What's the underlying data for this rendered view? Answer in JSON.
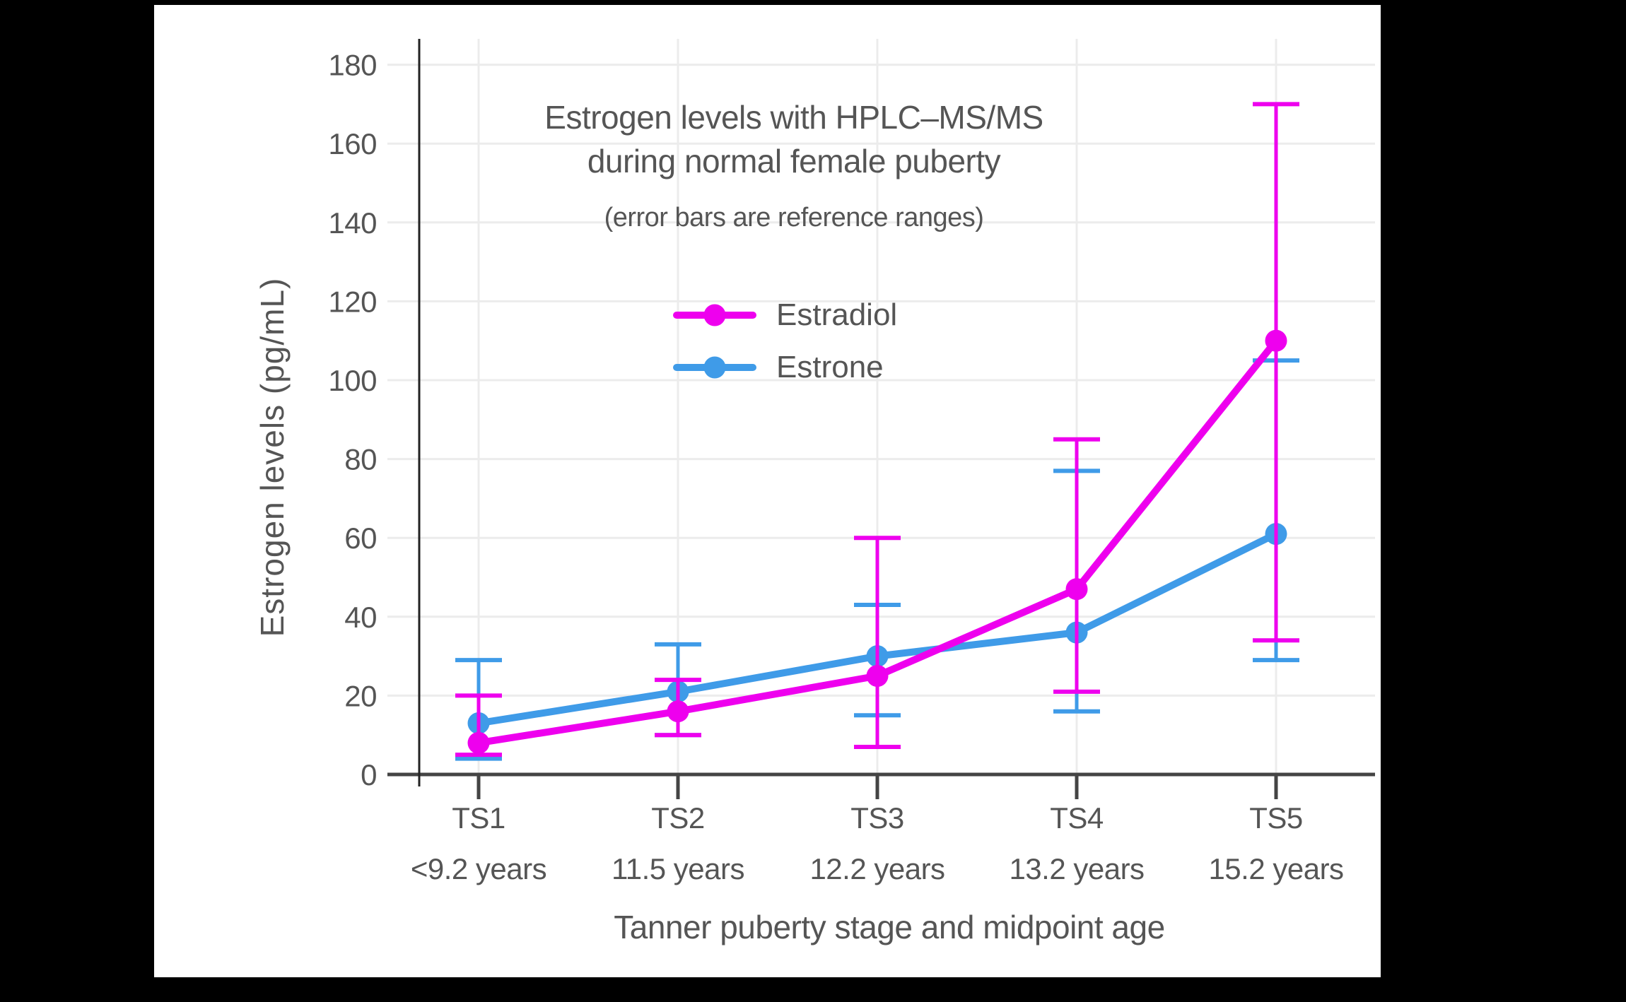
{
  "page": {
    "background_color": "#000000",
    "canvas_color": "#ffffff",
    "text_color": "#555555",
    "grid_color": "#ececec",
    "axis_color": "#444444"
  },
  "chart_data": {
    "type": "line",
    "title": [
      "Estrogen levels with HPLC–MS/MS",
      "during normal female puberty"
    ],
    "subtitle": "(error bars are reference ranges)",
    "ylabel": "Estrogen levels (pg/mL)",
    "xlabel": "Tanner puberty stage and midpoint age",
    "categories": [
      "TS1",
      "TS2",
      "TS3",
      "TS4",
      "TS5"
    ],
    "category_sublabels": [
      "<9.2 years",
      "11.5 years",
      "12.2 years",
      "13.2 years",
      "15.2 years"
    ],
    "y_ticks": [
      0,
      20,
      40,
      60,
      80,
      100,
      120,
      140,
      160,
      180
    ],
    "ylim": [
      0,
      187
    ],
    "grid": true,
    "legend_position": "inside upper-left",
    "error_bars": "reference ranges",
    "series": [
      {
        "name": "Estradiol",
        "color": "#ee00ee",
        "values": [
          8,
          16,
          25,
          47,
          110
        ],
        "error_low": [
          5,
          10,
          7,
          21,
          34
        ],
        "error_high": [
          20,
          24,
          60,
          85,
          170
        ]
      },
      {
        "name": "Estrone",
        "color": "#3f9be8",
        "values": [
          13,
          21,
          30,
          36,
          61
        ],
        "error_low": [
          4,
          10,
          15,
          16,
          29
        ],
        "error_high": [
          29,
          33,
          43,
          77,
          105
        ]
      }
    ]
  }
}
